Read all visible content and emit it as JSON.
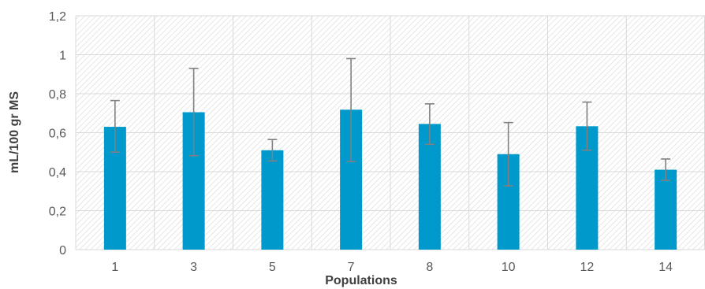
{
  "chart_data": {
    "type": "bar",
    "title": "",
    "xlabel": "Populations",
    "ylabel": "mL/100 gr MS",
    "categories": [
      "1",
      "3",
      "5",
      "7",
      "8",
      "10",
      "12",
      "14"
    ],
    "values": [
      0.63,
      0.705,
      0.51,
      0.718,
      0.645,
      0.49,
      0.633,
      0.41
    ],
    "error_low": [
      0.5,
      0.482,
      0.455,
      0.452,
      0.54,
      0.327,
      0.51,
      0.355
    ],
    "error_high": [
      0.765,
      0.93,
      0.565,
      0.98,
      0.748,
      0.652,
      0.757,
      0.465
    ],
    "ylim": [
      0,
      1.2
    ],
    "yticks": [
      0,
      0.2,
      0.4,
      0.6,
      0.8,
      1,
      1.2
    ],
    "ytick_labels": [
      "0",
      "0,2",
      "0,4",
      "0,6",
      "0,8",
      "1",
      "1,2"
    ],
    "grid": true,
    "bar_color": "#0099cc",
    "error_color": "#808080",
    "background_hatch_color": "#d0d0d0"
  }
}
